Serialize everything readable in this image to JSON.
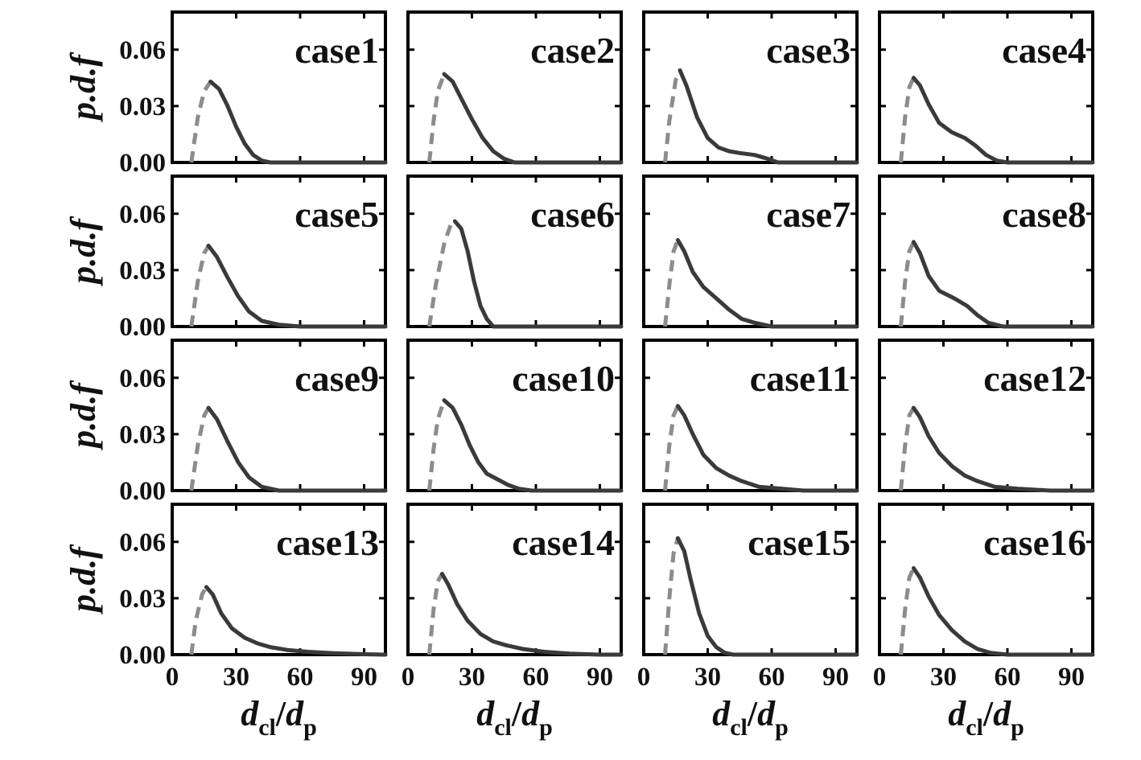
{
  "figure": {
    "y_axis_label": "p.d.f",
    "x_axis_label": {
      "d": "d",
      "sub_cl": "cl",
      "slash": "/",
      "sub_p": "p"
    },
    "y_tick_labels": [
      "0.00",
      "0.03",
      "0.06"
    ],
    "x_tick_labels": [
      "0",
      "30",
      "60",
      "90"
    ]
  },
  "style": {
    "solid_color": "#3a3a3a",
    "dashed_color": "#8c8c8c",
    "frame_color": "#000000"
  },
  "chart_data": [
    {
      "type": "line",
      "title": "case1",
      "xlim": [
        0,
        100
      ],
      "ylim": [
        0,
        0.08
      ],
      "peak_x": 18,
      "peak_y": 0.043,
      "points": [
        [
          9,
          0.0
        ],
        [
          12,
          0.024
        ],
        [
          15,
          0.038
        ],
        [
          18,
          0.043
        ],
        [
          22,
          0.039
        ],
        [
          26,
          0.03
        ],
        [
          30,
          0.019
        ],
        [
          34,
          0.01
        ],
        [
          38,
          0.004
        ],
        [
          42,
          0.001
        ],
        [
          46,
          0.0
        ],
        [
          100,
          0.0
        ]
      ]
    },
    {
      "type": "line",
      "title": "case2",
      "xlim": [
        0,
        100
      ],
      "ylim": [
        0,
        0.08
      ],
      "peak_x": 17,
      "peak_y": 0.047,
      "points": [
        [
          10,
          0.0
        ],
        [
          12,
          0.022
        ],
        [
          14,
          0.038
        ],
        [
          17,
          0.047
        ],
        [
          21,
          0.043
        ],
        [
          25,
          0.034
        ],
        [
          30,
          0.023
        ],
        [
          35,
          0.013
        ],
        [
          40,
          0.006
        ],
        [
          45,
          0.002
        ],
        [
          50,
          0.0
        ],
        [
          100,
          0.0
        ]
      ]
    },
    {
      "type": "line",
      "title": "case3",
      "xlim": [
        0,
        100
      ],
      "ylim": [
        0,
        0.08
      ],
      "peak_x": 17,
      "peak_y": 0.049,
      "points": [
        [
          10,
          0.0
        ],
        [
          12,
          0.022
        ],
        [
          15,
          0.044
        ],
        [
          17,
          0.049
        ],
        [
          20,
          0.041
        ],
        [
          25,
          0.024
        ],
        [
          30,
          0.013
        ],
        [
          35,
          0.008
        ],
        [
          40,
          0.006
        ],
        [
          45,
          0.005
        ],
        [
          52,
          0.004
        ],
        [
          58,
          0.002
        ],
        [
          63,
          0.0
        ],
        [
          100,
          0.0
        ]
      ]
    },
    {
      "type": "line",
      "title": "case4",
      "xlim": [
        0,
        100
      ],
      "ylim": [
        0,
        0.08
      ],
      "peak_x": 16,
      "peak_y": 0.045,
      "points": [
        [
          10,
          0.0
        ],
        [
          12,
          0.024
        ],
        [
          14,
          0.04
        ],
        [
          16,
          0.045
        ],
        [
          19,
          0.041
        ],
        [
          23,
          0.031
        ],
        [
          28,
          0.021
        ],
        [
          34,
          0.016
        ],
        [
          40,
          0.013
        ],
        [
          45,
          0.009
        ],
        [
          50,
          0.004
        ],
        [
          55,
          0.001
        ],
        [
          60,
          0.0
        ],
        [
          100,
          0.0
        ]
      ]
    },
    {
      "type": "line",
      "title": "case5",
      "xlim": [
        0,
        100
      ],
      "ylim": [
        0,
        0.08
      ],
      "peak_x": 17,
      "peak_y": 0.043,
      "points": [
        [
          9,
          0.0
        ],
        [
          12,
          0.024
        ],
        [
          15,
          0.039
        ],
        [
          17,
          0.043
        ],
        [
          21,
          0.037
        ],
        [
          26,
          0.026
        ],
        [
          31,
          0.016
        ],
        [
          36,
          0.008
        ],
        [
          42,
          0.003
        ],
        [
          50,
          0.001
        ],
        [
          60,
          0.0
        ],
        [
          100,
          0.0
        ]
      ]
    },
    {
      "type": "line",
      "title": "case6",
      "xlim": [
        0,
        100
      ],
      "ylim": [
        0,
        0.08
      ],
      "peak_x": 22,
      "peak_y": 0.056,
      "points": [
        [
          10,
          0.0
        ],
        [
          13,
          0.022
        ],
        [
          17,
          0.044
        ],
        [
          20,
          0.054
        ],
        [
          22,
          0.056
        ],
        [
          25,
          0.052
        ],
        [
          28,
          0.04
        ],
        [
          31,
          0.024
        ],
        [
          34,
          0.011
        ],
        [
          37,
          0.004
        ],
        [
          40,
          0.0
        ],
        [
          100,
          0.0
        ]
      ]
    },
    {
      "type": "line",
      "title": "case7",
      "xlim": [
        0,
        100
      ],
      "ylim": [
        0,
        0.08
      ],
      "peak_x": 16,
      "peak_y": 0.046,
      "points": [
        [
          10,
          0.0
        ],
        [
          12,
          0.022
        ],
        [
          14,
          0.04
        ],
        [
          16,
          0.046
        ],
        [
          19,
          0.04
        ],
        [
          23,
          0.029
        ],
        [
          28,
          0.021
        ],
        [
          34,
          0.015
        ],
        [
          40,
          0.009
        ],
        [
          46,
          0.004
        ],
        [
          52,
          0.002
        ],
        [
          60,
          0.0
        ],
        [
          100,
          0.0
        ]
      ]
    },
    {
      "type": "line",
      "title": "case8",
      "xlim": [
        0,
        100
      ],
      "ylim": [
        0,
        0.08
      ],
      "peak_x": 16,
      "peak_y": 0.045,
      "points": [
        [
          10,
          0.0
        ],
        [
          12,
          0.024
        ],
        [
          14,
          0.04
        ],
        [
          16,
          0.045
        ],
        [
          19,
          0.039
        ],
        [
          23,
          0.027
        ],
        [
          28,
          0.019
        ],
        [
          35,
          0.015
        ],
        [
          41,
          0.011
        ],
        [
          46,
          0.006
        ],
        [
          51,
          0.002
        ],
        [
          58,
          0.0
        ],
        [
          100,
          0.0
        ]
      ]
    },
    {
      "type": "line",
      "title": "case9",
      "xlim": [
        0,
        100
      ],
      "ylim": [
        0,
        0.08
      ],
      "peak_x": 17,
      "peak_y": 0.044,
      "points": [
        [
          9,
          0.0
        ],
        [
          12,
          0.024
        ],
        [
          15,
          0.04
        ],
        [
          17,
          0.044
        ],
        [
          21,
          0.038
        ],
        [
          26,
          0.026
        ],
        [
          31,
          0.015
        ],
        [
          36,
          0.007
        ],
        [
          42,
          0.002
        ],
        [
          50,
          0.0
        ],
        [
          100,
          0.0
        ]
      ]
    },
    {
      "type": "line",
      "title": "case10",
      "xlim": [
        0,
        100
      ],
      "ylim": [
        0,
        0.08
      ],
      "peak_x": 17,
      "peak_y": 0.048,
      "points": [
        [
          10,
          0.0
        ],
        [
          12,
          0.022
        ],
        [
          14,
          0.038
        ],
        [
          17,
          0.048
        ],
        [
          21,
          0.044
        ],
        [
          25,
          0.035
        ],
        [
          29,
          0.024
        ],
        [
          33,
          0.015
        ],
        [
          37,
          0.009
        ],
        [
          42,
          0.006
        ],
        [
          47,
          0.003
        ],
        [
          52,
          0.001
        ],
        [
          58,
          0.0
        ],
        [
          100,
          0.0
        ]
      ]
    },
    {
      "type": "line",
      "title": "case11",
      "xlim": [
        0,
        100
      ],
      "ylim": [
        0,
        0.08
      ],
      "peak_x": 16,
      "peak_y": 0.045,
      "points": [
        [
          10,
          0.0
        ],
        [
          12,
          0.024
        ],
        [
          14,
          0.04
        ],
        [
          16,
          0.045
        ],
        [
          19,
          0.04
        ],
        [
          23,
          0.03
        ],
        [
          28,
          0.019
        ],
        [
          34,
          0.012
        ],
        [
          40,
          0.008
        ],
        [
          46,
          0.005
        ],
        [
          54,
          0.002
        ],
        [
          65,
          0.001
        ],
        [
          75,
          0.0
        ],
        [
          100,
          0.0
        ]
      ]
    },
    {
      "type": "line",
      "title": "case12",
      "xlim": [
        0,
        100
      ],
      "ylim": [
        0,
        0.08
      ],
      "peak_x": 16,
      "peak_y": 0.044,
      "points": [
        [
          10,
          0.0
        ],
        [
          12,
          0.024
        ],
        [
          14,
          0.04
        ],
        [
          16,
          0.044
        ],
        [
          19,
          0.039
        ],
        [
          23,
          0.029
        ],
        [
          28,
          0.02
        ],
        [
          34,
          0.013
        ],
        [
          40,
          0.008
        ],
        [
          46,
          0.005
        ],
        [
          54,
          0.002
        ],
        [
          65,
          0.001
        ],
        [
          80,
          0.0
        ],
        [
          100,
          0.0
        ]
      ]
    },
    {
      "type": "line",
      "title": "case13",
      "xlim": [
        0,
        100
      ],
      "ylim": [
        0,
        0.08
      ],
      "peak_x": 16,
      "peak_y": 0.036,
      "points": [
        [
          9,
          0.0
        ],
        [
          11,
          0.018
        ],
        [
          14,
          0.032
        ],
        [
          16,
          0.036
        ],
        [
          19,
          0.032
        ],
        [
          23,
          0.022
        ],
        [
          28,
          0.014
        ],
        [
          34,
          0.009
        ],
        [
          40,
          0.006
        ],
        [
          46,
          0.004
        ],
        [
          54,
          0.0025
        ],
        [
          64,
          0.0015
        ],
        [
          75,
          0.0008
        ],
        [
          90,
          0.0002
        ],
        [
          100,
          0.0
        ]
      ]
    },
    {
      "type": "line",
      "title": "case14",
      "xlim": [
        0,
        100
      ],
      "ylim": [
        0,
        0.08
      ],
      "peak_x": 16,
      "peak_y": 0.043,
      "points": [
        [
          10,
          0.0
        ],
        [
          12,
          0.024
        ],
        [
          14,
          0.039
        ],
        [
          16,
          0.043
        ],
        [
          19,
          0.037
        ],
        [
          23,
          0.027
        ],
        [
          28,
          0.018
        ],
        [
          34,
          0.011
        ],
        [
          40,
          0.007
        ],
        [
          46,
          0.005
        ],
        [
          54,
          0.003
        ],
        [
          64,
          0.0015
        ],
        [
          76,
          0.0005
        ],
        [
          90,
          0.0
        ],
        [
          100,
          0.0
        ]
      ]
    },
    {
      "type": "line",
      "title": "case15",
      "xlim": [
        0,
        100
      ],
      "ylim": [
        0,
        0.08
      ],
      "peak_x": 16,
      "peak_y": 0.062,
      "points": [
        [
          10,
          0.0
        ],
        [
          12,
          0.03
        ],
        [
          14,
          0.054
        ],
        [
          16,
          0.062
        ],
        [
          19,
          0.055
        ],
        [
          22,
          0.04
        ],
        [
          26,
          0.022
        ],
        [
          30,
          0.01
        ],
        [
          34,
          0.004
        ],
        [
          38,
          0.001
        ],
        [
          42,
          0.0
        ],
        [
          100,
          0.0
        ]
      ]
    },
    {
      "type": "line",
      "title": "case16",
      "xlim": [
        0,
        100
      ],
      "ylim": [
        0,
        0.08
      ],
      "peak_x": 16,
      "peak_y": 0.046,
      "points": [
        [
          10,
          0.0
        ],
        [
          12,
          0.024
        ],
        [
          14,
          0.041
        ],
        [
          16,
          0.046
        ],
        [
          19,
          0.041
        ],
        [
          23,
          0.031
        ],
        [
          28,
          0.021
        ],
        [
          34,
          0.013
        ],
        [
          40,
          0.007
        ],
        [
          46,
          0.003
        ],
        [
          52,
          0.001
        ],
        [
          60,
          0.0
        ],
        [
          100,
          0.0
        ]
      ]
    }
  ]
}
